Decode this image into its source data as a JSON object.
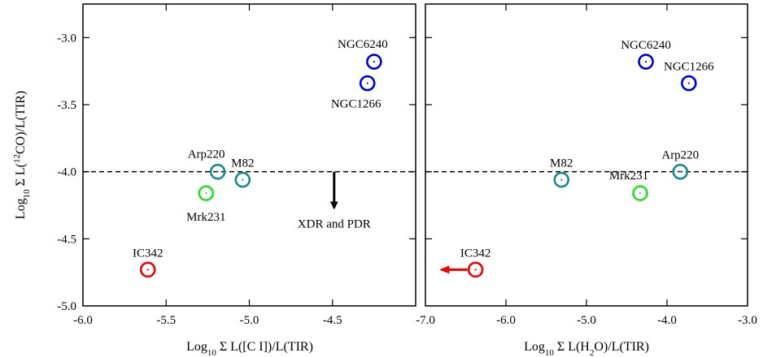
{
  "chart_data": [
    {
      "type": "scatter",
      "xlabel": {
        "pre": "Log",
        "sub": "10",
        "post": " Σ L([C I])/L(TIR)"
      },
      "ylabel": {
        "pre": "Log",
        "sub": "10",
        "mid": " Σ L(",
        "sup": "12",
        "post": "CO)/L(TIR)"
      },
      "xlim": [
        -6.0,
        -4.0
      ],
      "ylim": [
        -5.0,
        -2.75
      ],
      "xticks": [
        "-6.0",
        "-5.5",
        "-5.0",
        "-4.5"
      ],
      "yticks": [
        "-3.0",
        "-3.5",
        "-4.0",
        "-4.5",
        "-5.0"
      ],
      "hline_y": -4.0,
      "points": [
        {
          "label": "NGC6240",
          "x": -4.25,
          "y": -3.18,
          "color": "#0000dd",
          "label_pos": "above-left"
        },
        {
          "label": "NGC1266",
          "x": -4.29,
          "y": -3.34,
          "color": "#0000dd",
          "label_pos": "below-left"
        },
        {
          "label": "Arp220",
          "x": -5.19,
          "y": -4.0,
          "color": "#1a8a8a",
          "label_pos": "above-left"
        },
        {
          "label": "M82",
          "x": -5.04,
          "y": -4.06,
          "color": "#1a8a8a",
          "label_pos": "above"
        },
        {
          "label": "Mrk231",
          "x": -5.26,
          "y": -4.16,
          "color": "#22dd22",
          "label_pos": "below"
        },
        {
          "label": "IC342",
          "x": -5.61,
          "y": -4.73,
          "color": "#ee0000",
          "label_pos": "above"
        }
      ],
      "arrows": [
        {
          "x": -4.49,
          "y_from": -4.0,
          "y_to": -4.27,
          "color": "#000000",
          "direction": "down"
        }
      ],
      "annotations": [
        {
          "text": "XDR and PDR",
          "x": -4.49,
          "y": -4.32
        }
      ]
    },
    {
      "type": "scatter",
      "xlabel": {
        "pre": "Log",
        "sub": "10",
        "post": " Σ L(H",
        "sub2": "2",
        "post2": "O)/L(TIR)"
      },
      "xlim": [
        -7.5,
        -3.0
      ],
      "ylim": [
        -5.0,
        -2.75
      ],
      "xticks": [
        "-7.0",
        "-6.0",
        "-5.0",
        "-4.0",
        "-3.0"
      ],
      "hline_y": -4.0,
      "points": [
        {
          "label": "NGC6240",
          "x": -4.42,
          "y": -3.18,
          "color": "#0000dd",
          "label_pos": "above"
        },
        {
          "label": "NGC1266",
          "x": -3.82,
          "y": -3.34,
          "color": "#0000dd",
          "label_pos": "above"
        },
        {
          "label": "M82",
          "x": -5.6,
          "y": -4.06,
          "color": "#1a8a8a",
          "label_pos": "above"
        },
        {
          "label": "Arp220",
          "x": -3.94,
          "y": -4.0,
          "color": "#1a8a8a",
          "label_pos": "above"
        },
        {
          "label": "Mrk231",
          "x": -4.5,
          "y": -4.16,
          "color": "#22dd22",
          "label_pos": "above-left"
        },
        {
          "label": "IC342",
          "x": -6.8,
          "y": -4.73,
          "color": "#ee0000",
          "label_pos": "above"
        }
      ],
      "h_arrows": [
        {
          "y": -4.73,
          "x_from": -6.8,
          "x_to": -7.28,
          "color": "#ee0000",
          "direction": "left"
        }
      ]
    }
  ]
}
